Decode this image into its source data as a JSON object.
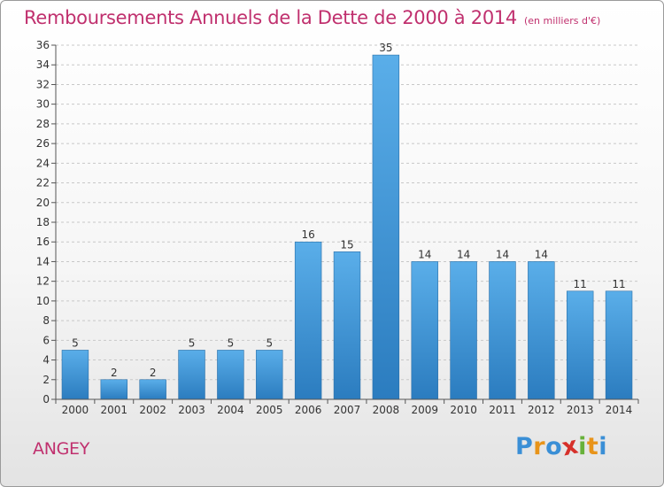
{
  "title": "Remboursements Annuels de la Dette de 2000 à 2014",
  "unit_note": "(en milliers d'€)",
  "commune": "ANGEY",
  "logo": {
    "letters": [
      "P",
      "r",
      "o",
      "x",
      "i",
      "t",
      "i"
    ],
    "colors": [
      "#3a8fd6",
      "#e8941a",
      "#3a8fd6",
      "#d6302a",
      "#67b13a",
      "#e8941a",
      "#3a8fd6"
    ]
  },
  "chart_data": {
    "type": "bar",
    "title": "Remboursements Annuels de la Dette de 2000 à 2014",
    "xlabel": "",
    "ylabel": "",
    "categories": [
      "2000",
      "2001",
      "2002",
      "2003",
      "2004",
      "2005",
      "2006",
      "2007",
      "2008",
      "2009",
      "2010",
      "2011",
      "2012",
      "2013",
      "2014"
    ],
    "values": [
      5,
      2,
      2,
      5,
      5,
      5,
      16,
      15,
      35,
      14,
      14,
      14,
      14,
      11,
      11
    ],
    "data_labels": [
      "5",
      "2",
      "2",
      "5",
      "5",
      "5",
      "16",
      "15",
      "35",
      "14",
      "14",
      "14",
      "14",
      "11",
      "11"
    ],
    "ylim": [
      0,
      36
    ],
    "yticks": [
      0,
      2,
      4,
      6,
      8,
      10,
      12,
      14,
      16,
      18,
      20,
      22,
      24,
      26,
      28,
      30,
      32,
      34,
      36
    ],
    "grid": true,
    "legend": "none",
    "bar_color_top": "#5aaee9",
    "bar_color_bottom": "#2b7cbf"
  }
}
